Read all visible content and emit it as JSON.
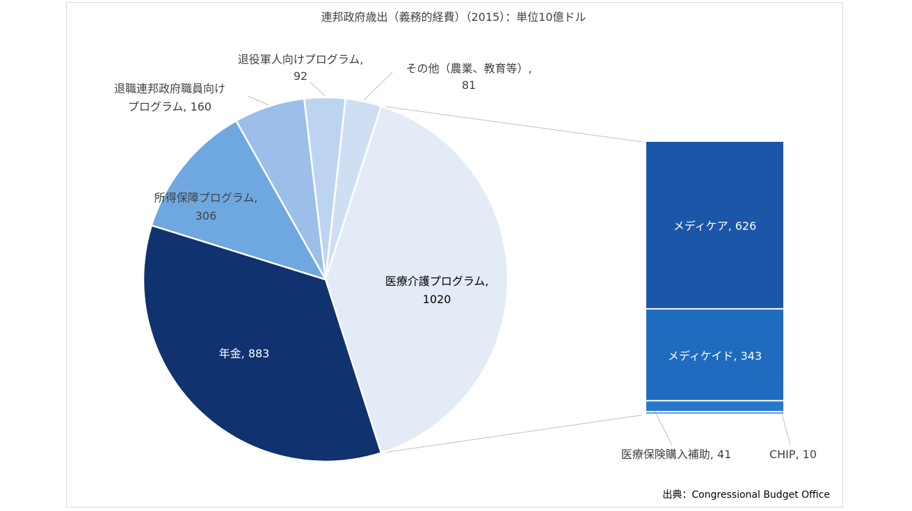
{
  "chart_data": {
    "type": "bar-of-pie",
    "title": "連邦政府歳出（義務的経費）（2015）：単位10億ドル",
    "source": "出典：Congressional Budget Office",
    "pie": {
      "slices": [
        {
          "name": "医療介護プログラム",
          "value": 1020,
          "color": "#e3ebf6",
          "label_l1": "医療介護プログラム,",
          "label_l2": "1020"
        },
        {
          "name": "年金",
          "value": 883,
          "color": "#10326e",
          "label_l1": "年金, 883",
          "label_l2": ""
        },
        {
          "name": "所得保障プログラム",
          "value": 306,
          "color": "#6fa8e0",
          "label_l1": "所得保障プログラム,",
          "label_l2": "306"
        },
        {
          "name": "退職連邦政府職員向けプログラム",
          "value": 160,
          "color": "#9bbfe8",
          "label_l1": "退職連邦政府職員向け",
          "label_l2": "プログラム, 160"
        },
        {
          "name": "退役軍人向けプログラム",
          "value": 92,
          "color": "#bdd4f0",
          "label_l1": "退役軍人向けプログラム,",
          "label_l2": "92"
        },
        {
          "name": "その他（農業、教育等）",
          "value": 81,
          "color": "#cfdff3",
          "label_l1": "その他（農業、教育等）,",
          "label_l2": "81"
        }
      ]
    },
    "bar": {
      "segments": [
        {
          "name": "メディケア",
          "value": 626,
          "color": "#1b56a8",
          "label": "メディケア, 626"
        },
        {
          "name": "メディケイド",
          "value": 343,
          "color": "#1f6bc0",
          "label": "メディケイド, 343"
        },
        {
          "name": "医療保険購入補助",
          "value": 41,
          "color": "#2778cc",
          "label": "医療保険購入補助, 41"
        },
        {
          "name": "CHIP",
          "value": 10,
          "color": "#4e94da",
          "label": "CHIP, 10"
        }
      ]
    }
  }
}
